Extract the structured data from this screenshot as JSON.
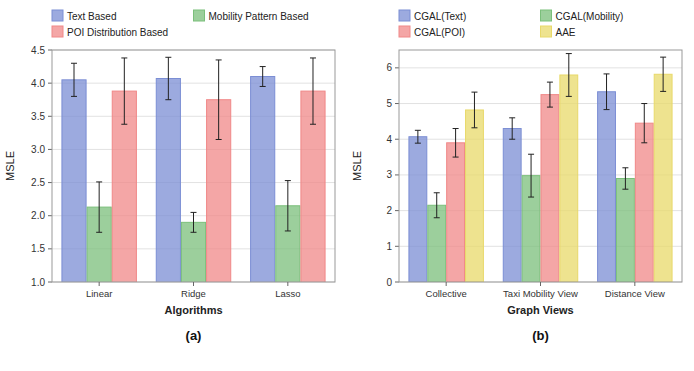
{
  "chart_data": [
    {
      "type": "bar",
      "title": "(a)",
      "xlabel": "Algorithms",
      "ylabel": "MSLE",
      "categories": [
        "Linear",
        "Ridge",
        "Lasso"
      ],
      "series": [
        {
          "name": "Text Based",
          "color": "#7b8ed4",
          "values": [
            4.05,
            4.07,
            4.1
          ],
          "errors": [
            0.25,
            0.32,
            0.15
          ]
        },
        {
          "name": "Mobility Pattern Based",
          "color": "#7bbf7b",
          "values": [
            2.13,
            1.9,
            2.15
          ],
          "errors": [
            0.38,
            0.15,
            0.38
          ]
        },
        {
          "name": "POI Distribution Based",
          "color": "#f08888",
          "values": [
            3.88,
            3.75,
            3.88
          ],
          "errors": [
            0.5,
            0.6,
            0.5
          ]
        }
      ],
      "ylim": [
        1.0,
        4.5
      ],
      "yticks": [
        {
          "value": 1.0,
          "label": "1.0"
        },
        1.5,
        {
          "value": 2.0,
          "label": "2.0"
        },
        2.5,
        {
          "value": 3.0,
          "label": "3.0"
        },
        3.5,
        {
          "value": 4.0,
          "label": "4.0"
        },
        4.5
      ],
      "grid": true,
      "legend": "top"
    },
    {
      "type": "bar",
      "title": "(b)",
      "xlabel": "Graph Views",
      "ylabel": "MSLE",
      "categories": [
        "Collective",
        "Taxi Mobility View",
        "Distance View"
      ],
      "series": [
        {
          "name": "CGAL(Text)",
          "color": "#7b8ed4",
          "values": [
            4.07,
            4.3,
            5.33
          ],
          "errors": [
            0.18,
            0.3,
            0.5
          ]
        },
        {
          "name": "CGAL(Mobility)",
          "color": "#7bbf7b",
          "values": [
            2.15,
            2.98,
            2.9
          ],
          "errors": [
            0.35,
            0.6,
            0.3
          ]
        },
        {
          "name": "CGAL(POI)",
          "color": "#f08888",
          "values": [
            3.9,
            5.25,
            4.45
          ],
          "errors": [
            0.4,
            0.35,
            0.55
          ]
        },
        {
          "name": "AAE",
          "color": "#e8d96a",
          "values": [
            4.82,
            5.8,
            5.82
          ],
          "errors": [
            0.5,
            0.6,
            0.48
          ]
        }
      ],
      "ylim": [
        0,
        6.5
      ],
      "yticks": [
        0,
        1,
        2,
        3,
        4,
        5,
        6
      ],
      "grid": true,
      "legend": "top"
    }
  ]
}
